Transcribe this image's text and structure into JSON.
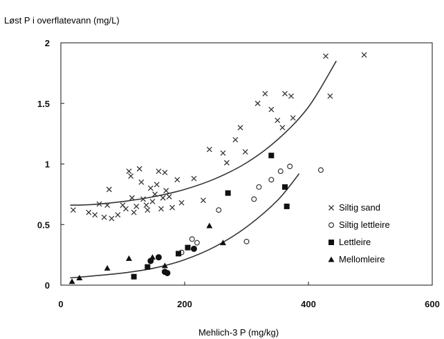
{
  "chart_data": {
    "type": "scatter",
    "title": "Løst P i overflatevann (mg/L)",
    "xlabel": "Mehlich-3 P (mg/kg)",
    "ylabel": "",
    "xlim": [
      0,
      600
    ],
    "ylim": [
      0,
      2
    ],
    "x_ticks": [
      "0",
      "200",
      "400",
      "600"
    ],
    "y_ticks": [
      "0",
      "0.5",
      "1",
      "1.5",
      "2"
    ],
    "grid": false,
    "legend_position": "lower-right",
    "series": [
      {
        "name": "Siltig sand",
        "marker": "x",
        "points": [
          [
            20,
            0.62
          ],
          [
            45,
            0.6
          ],
          [
            55,
            0.58
          ],
          [
            62,
            0.67
          ],
          [
            70,
            0.56
          ],
          [
            75,
            0.66
          ],
          [
            78,
            0.79
          ],
          [
            82,
            0.55
          ],
          [
            92,
            0.58
          ],
          [
            100,
            0.66
          ],
          [
            105,
            0.63
          ],
          [
            110,
            0.94
          ],
          [
            113,
            0.9
          ],
          [
            115,
            0.72
          ],
          [
            118,
            0.6
          ],
          [
            122,
            0.65
          ],
          [
            127,
            0.96
          ],
          [
            130,
            0.85
          ],
          [
            133,
            0.71
          ],
          [
            138,
            0.66
          ],
          [
            140,
            0.62
          ],
          [
            145,
            0.8
          ],
          [
            148,
            0.69
          ],
          [
            152,
            0.75
          ],
          [
            155,
            0.83
          ],
          [
            158,
            0.94
          ],
          [
            162,
            0.63
          ],
          [
            165,
            0.72
          ],
          [
            168,
            0.93
          ],
          [
            170,
            0.78
          ],
          [
            175,
            0.73
          ],
          [
            180,
            0.64
          ],
          [
            188,
            0.87
          ],
          [
            195,
            0.68
          ],
          [
            215,
            0.88
          ],
          [
            230,
            0.7
          ],
          [
            240,
            1.12
          ],
          [
            262,
            1.09
          ],
          [
            268,
            1.01
          ],
          [
            282,
            1.2
          ],
          [
            290,
            1.3
          ],
          [
            298,
            1.1
          ],
          [
            318,
            1.5
          ],
          [
            330,
            1.58
          ],
          [
            340,
            1.45
          ],
          [
            350,
            1.36
          ],
          [
            358,
            1.3
          ],
          [
            362,
            1.58
          ],
          [
            372,
            1.56
          ],
          [
            375,
            1.38
          ],
          [
            428,
            1.89
          ],
          [
            435,
            1.56
          ],
          [
            490,
            1.9
          ]
        ]
      },
      {
        "name": "Siltig lettleire",
        "marker": "circle",
        "points": [
          [
            195,
            0.27
          ],
          [
            212,
            0.38
          ],
          [
            220,
            0.35
          ],
          [
            255,
            0.62
          ],
          [
            300,
            0.36
          ],
          [
            312,
            0.71
          ],
          [
            320,
            0.81
          ],
          [
            340,
            0.87
          ],
          [
            355,
            0.94
          ],
          [
            370,
            0.98
          ],
          [
            420,
            0.95
          ]
        ]
      },
      {
        "name": "Lettleire",
        "marker": "square",
        "points": [
          [
            118,
            0.07
          ],
          [
            140,
            0.15
          ],
          [
            190,
            0.26
          ],
          [
            205,
            0.31
          ],
          [
            270,
            0.76
          ],
          [
            340,
            1.07
          ],
          [
            362,
            0.81
          ],
          [
            365,
            0.65
          ]
        ]
      },
      {
        "name": "Mellomleire",
        "marker": "triangle",
        "points": [
          [
            18,
            0.03
          ],
          [
            30,
            0.06
          ],
          [
            75,
            0.14
          ],
          [
            110,
            0.22
          ],
          [
            148,
            0.23
          ],
          [
            168,
            0.16
          ],
          [
            240,
            0.49
          ],
          [
            262,
            0.35
          ]
        ]
      },
      {
        "name": "",
        "marker": "filled-circle",
        "points": [
          [
            145,
            0.2
          ],
          [
            158,
            0.23
          ],
          [
            168,
            0.11
          ],
          [
            172,
            0.1
          ],
          [
            215,
            0.3
          ]
        ]
      }
    ],
    "fits": [
      {
        "points": [
          [
            15,
            0.66
          ],
          [
            50,
            0.665
          ],
          [
            100,
            0.69
          ],
          [
            150,
            0.73
          ],
          [
            200,
            0.79
          ],
          [
            250,
            0.88
          ],
          [
            300,
            1.01
          ],
          [
            350,
            1.2
          ],
          [
            400,
            1.47
          ],
          [
            445,
            1.85
          ]
        ]
      },
      {
        "points": [
          [
            15,
            0.06
          ],
          [
            50,
            0.075
          ],
          [
            100,
            0.1
          ],
          [
            150,
            0.14
          ],
          [
            200,
            0.21
          ],
          [
            250,
            0.32
          ],
          [
            300,
            0.48
          ],
          [
            350,
            0.7
          ],
          [
            385,
            0.92
          ]
        ]
      }
    ]
  }
}
